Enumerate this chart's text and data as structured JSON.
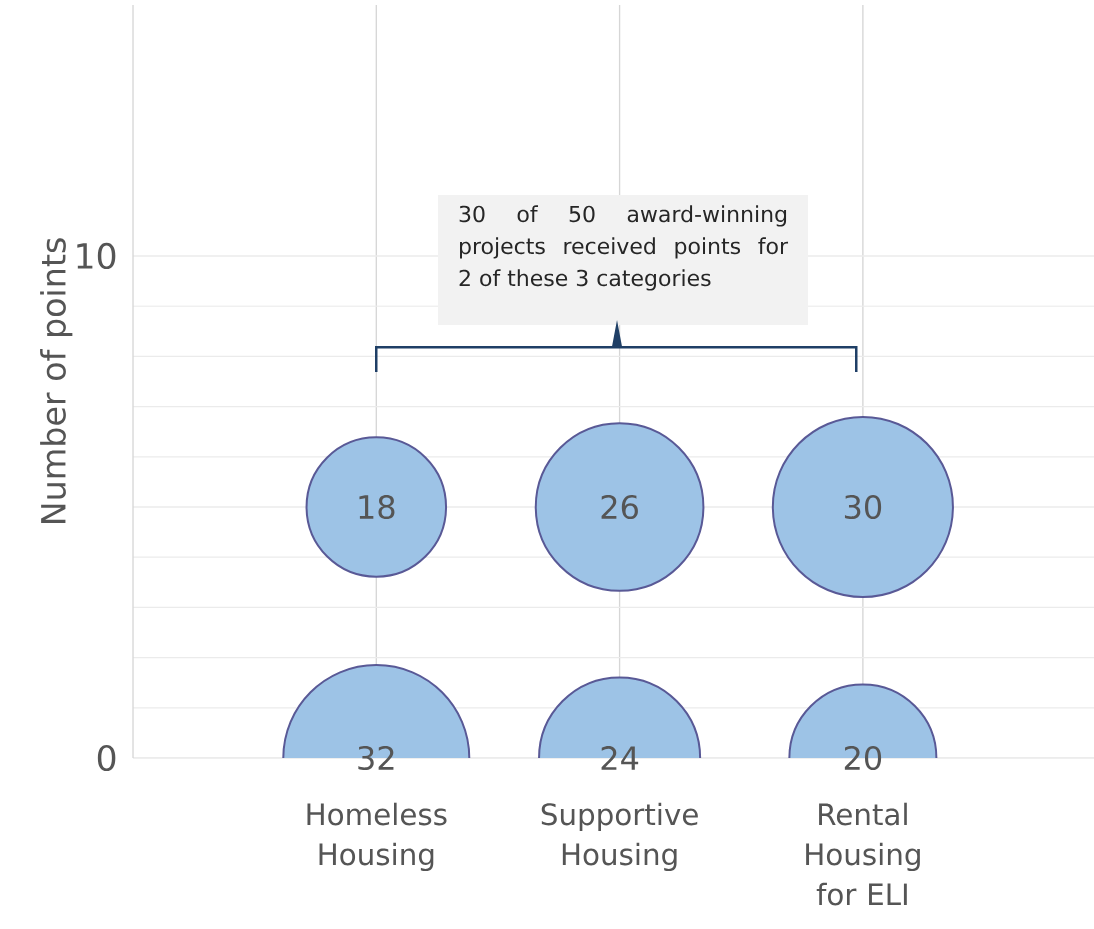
{
  "chart_data": {
    "type": "bubble",
    "ylabel": "Number of points",
    "categories": [
      "Homeless Housing",
      "Supportive Housing",
      "Rental Housing for ELI"
    ],
    "series": [
      {
        "color": "#9dc3e6",
        "values": [
          5,
          5,
          5
        ],
        "sizes": [
          18,
          26,
          30
        ],
        "value_labels": [
          "18",
          "26",
          "30"
        ]
      },
      {
        "color": "#9dc3e6",
        "values": [
          0,
          0,
          0
        ],
        "sizes": [
          32,
          24,
          20
        ],
        "value_labels": [
          "32",
          "24",
          "20"
        ]
      }
    ],
    "ylim": [
      0,
      15
    ],
    "yticks": [
      0,
      10
    ],
    "grid": true,
    "annotations": [
      "30 of 50 award-winning projects received points for 2 of these 3 categories"
    ]
  }
}
